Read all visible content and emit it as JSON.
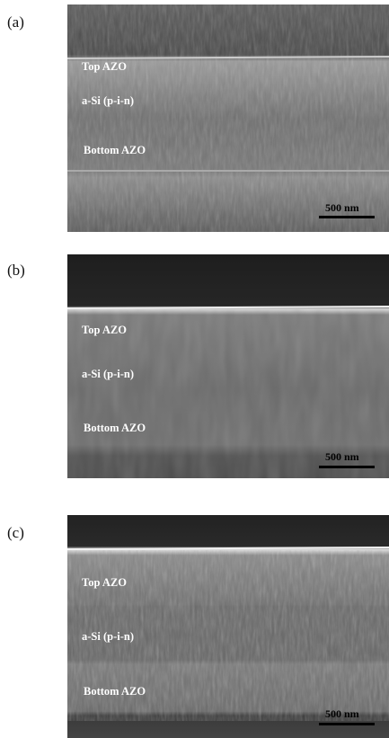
{
  "panels": [
    {
      "label": "(a)",
      "layers": [
        "Top AZO",
        "a-Si (p-i-n)",
        "Bottom AZO"
      ],
      "scale_bar": "500 nm"
    },
    {
      "label": "(b)",
      "layers": [
        "Top AZO",
        "a-Si (p-i-n)",
        "Bottom AZO"
      ],
      "scale_bar": "500 nm"
    },
    {
      "label": "(c)",
      "layers": [
        "Top AZO",
        "a-Si (p-i-n)",
        "Bottom AZO"
      ],
      "scale_bar": "500 nm"
    }
  ]
}
